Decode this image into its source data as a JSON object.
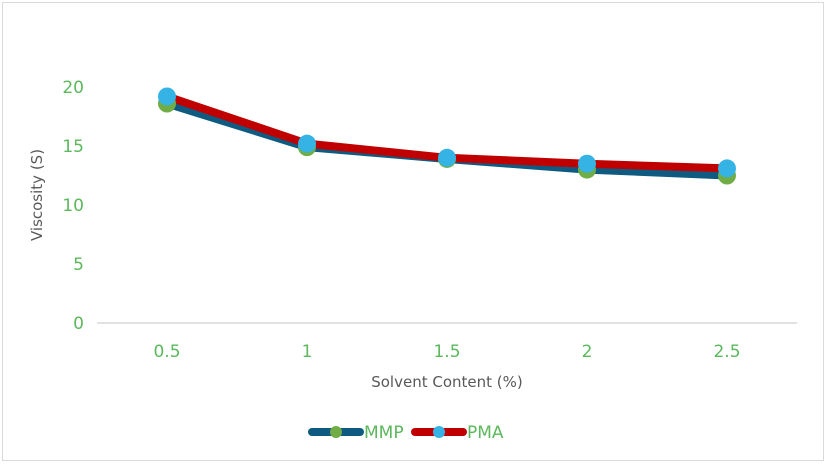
{
  "chart_data": {
    "type": "line",
    "title": "",
    "xlabel": "Solvent Content (%)",
    "ylabel": "Viscosity (S)",
    "categories": [
      "0.5",
      "1",
      "1.5",
      "2",
      "2.5"
    ],
    "x": [
      0.5,
      1,
      1.5,
      2,
      2.5
    ],
    "ylim": [
      0,
      20
    ],
    "yticks": [
      "0",
      "5",
      "10",
      "15",
      "20"
    ],
    "grid": false,
    "legend_position": "bottom",
    "series": [
      {
        "name": "MMP",
        "values": [
          18.6,
          14.9,
          13.9,
          13.0,
          12.5
        ],
        "line_color": "#0e5a80",
        "marker_color": "#70ad47"
      },
      {
        "name": "PMA",
        "values": [
          19.2,
          15.2,
          14.0,
          13.5,
          13.1
        ],
        "line_color": "#c00000",
        "marker_color": "#34b3e4"
      }
    ]
  },
  "colors": {
    "tick_label": "#5cb85c",
    "axis_title": "#595959",
    "axis_line": "#d9d9d9",
    "border": "#d9d9d9"
  }
}
